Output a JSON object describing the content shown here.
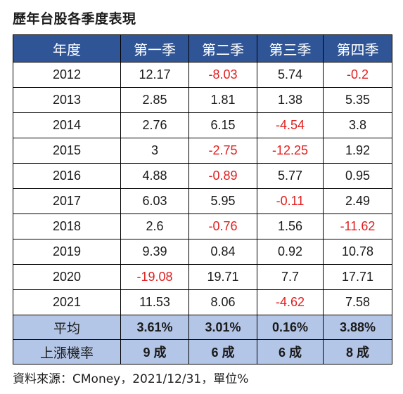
{
  "title": "歷年台股各季度表現",
  "source": "資料來源：CMoney，2021/12/31，單位%",
  "colors": {
    "header_bg": "#2f5597",
    "header_text": "#ffffff",
    "summary_bg": "#b4c6e7",
    "negative_text": "#e02020",
    "border": "#000000"
  },
  "chart_data": {
    "type": "table",
    "columns": [
      "年度",
      "第一季",
      "第二季",
      "第三季",
      "第四季"
    ],
    "rows": [
      [
        "2012",
        "12.17",
        "-8.03",
        "5.74",
        "-0.2"
      ],
      [
        "2013",
        "2.85",
        "1.81",
        "1.38",
        "5.35"
      ],
      [
        "2014",
        "2.76",
        "6.15",
        "-4.54",
        "3.8"
      ],
      [
        "2015",
        "3",
        "-2.75",
        "-12.25",
        "1.92"
      ],
      [
        "2016",
        "4.88",
        "-0.89",
        "5.77",
        "0.95"
      ],
      [
        "2017",
        "6.03",
        "5.95",
        "-0.11",
        "2.49"
      ],
      [
        "2018",
        "2.6",
        "-0.76",
        "1.56",
        "-11.62"
      ],
      [
        "2019",
        "9.39",
        "0.84",
        "0.92",
        "10.78"
      ],
      [
        "2020",
        "-19.08",
        "19.71",
        "7.7",
        "17.71"
      ],
      [
        "2021",
        "11.53",
        "8.06",
        "-4.62",
        "7.58"
      ]
    ],
    "summary_rows": [
      [
        "平均",
        "3.61%",
        "3.01%",
        "0.16%",
        "3.88%"
      ],
      [
        "上漲機率",
        "9 成",
        "6 成",
        "6 成",
        "8 成"
      ]
    ]
  }
}
